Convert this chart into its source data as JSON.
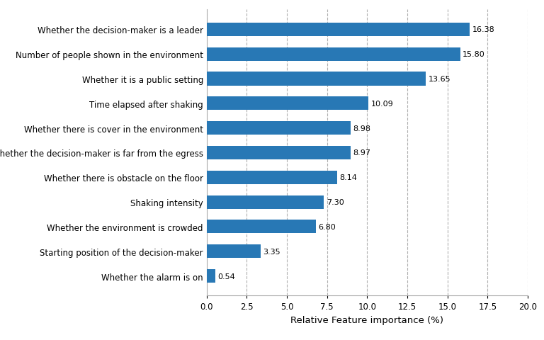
{
  "categories": [
    "Whether the alarm is on",
    "Starting position of the decision-maker",
    "Whether the environment is crowded",
    "Shaking intensity",
    "Whether there is obstacle on the floor",
    "Whether the decision-maker is far from the egress",
    "Whether there is cover in the environment",
    "Time elapsed after shaking",
    "Whether it is a public setting",
    "Number of people shown in the environment",
    "Whether the decision-maker is a leader"
  ],
  "values": [
    0.54,
    3.35,
    6.8,
    7.3,
    8.14,
    8.97,
    8.98,
    10.09,
    13.65,
    15.8,
    16.38
  ],
  "bar_color": "#2878b5",
  "xlabel": "Relative Feature importance (%)",
  "xlim": [
    0,
    20
  ],
  "xticks": [
    0.0,
    2.5,
    5.0,
    7.5,
    10.0,
    12.5,
    15.0,
    17.5,
    20.0
  ],
  "xtick_labels": [
    "0.0",
    "2.5",
    "5.0",
    "7.5",
    "10.0",
    "12.5",
    "15.0",
    "17.5",
    "20.0"
  ],
  "background_color": "#ffffff",
  "grid_color": "#b0b0b0",
  "label_fontsize": 8.5,
  "xlabel_fontsize": 9.5,
  "value_label_fontsize": 8.0,
  "bar_height": 0.55
}
